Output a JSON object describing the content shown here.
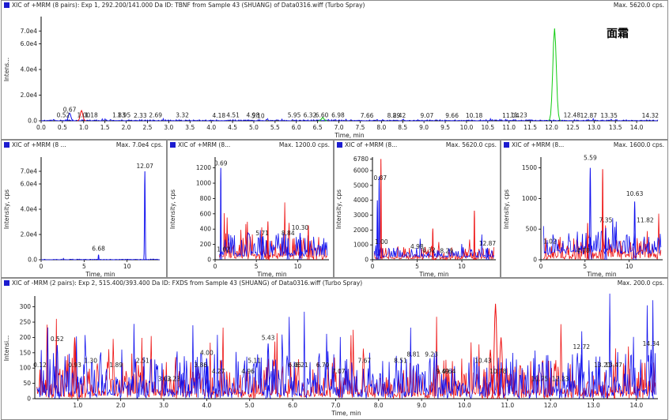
{
  "colors": {
    "blue": "#1111ee",
    "red": "#ee1111",
    "green": "#11cc11",
    "axis": "#000000"
  },
  "chart_data": [
    {
      "type": "line",
      "header_title": "XIC of +MRM (8 pairs): Exp 1, 292.200/141.000 Da ID: TBNF from Sample 43 (SHUANG) of Data0316.wiff (Turbo Spray)",
      "header_max": "Max. 5620.0 cps.",
      "annotation": "面霜",
      "xlabel": "Time, min",
      "ylabel": "Intens...",
      "xlim": [
        0,
        14.5
      ],
      "ylim": [
        0,
        80000
      ],
      "x_ticks": [
        0,
        0.5,
        1,
        1.5,
        2,
        2.5,
        3,
        3.5,
        4,
        4.5,
        5,
        5.5,
        6,
        6.5,
        7,
        7.5,
        8,
        8.5,
        9,
        9.5,
        10,
        10.5,
        11,
        11.5,
        12,
        12.5,
        13,
        13.5,
        14
      ],
      "x_tick_labels": [
        "0.0",
        "0.5",
        "1.0",
        "1.5",
        "2.0",
        "2.5",
        "3.0",
        "3.5",
        "4.0",
        "4.5",
        "5.0",
        "5.5",
        "6.0",
        "6.5",
        "7.0",
        "7.5",
        "8.0",
        "8.5",
        "9.0",
        "9.5",
        "10.0",
        "10.5",
        "11.0",
        "11.5",
        "12.0",
        "12.5",
        "13.0",
        "13.5",
        "14.0"
      ],
      "y_ticks": [
        0,
        20000,
        40000,
        60000,
        70000
      ],
      "y_tick_labels": [
        "0.0",
        "2.0e4",
        "4.0e4",
        "6.0e4",
        "7.0e4"
      ],
      "peak_labels": [
        {
          "x": 0.52,
          "y": 2200,
          "text": "0.52"
        },
        {
          "x": 0.67,
          "y": 6500,
          "text": "0.67"
        },
        {
          "x": 1.0,
          "y": 2200,
          "text": "1.00"
        },
        {
          "x": 1.18,
          "y": 2200,
          "text": "1.18"
        },
        {
          "x": 1.83,
          "y": 2200,
          "text": "1.83"
        },
        {
          "x": 1.95,
          "y": 2200,
          "text": "1.95"
        },
        {
          "x": 2.33,
          "y": 1800,
          "text": "2.33"
        },
        {
          "x": 2.69,
          "y": 2200,
          "text": "2.69"
        },
        {
          "x": 3.32,
          "y": 2200,
          "text": "3.32"
        },
        {
          "x": 4.18,
          "y": 1800,
          "text": "4.18"
        },
        {
          "x": 4.51,
          "y": 2200,
          "text": "4.51"
        },
        {
          "x": 4.98,
          "y": 2200,
          "text": "4.98"
        },
        {
          "x": 5.1,
          "y": 1600,
          "text": "5.10"
        },
        {
          "x": 5.95,
          "y": 2200,
          "text": "5.95"
        },
        {
          "x": 6.32,
          "y": 2200,
          "text": "6.32"
        },
        {
          "x": 6.6,
          "y": 2200,
          "text": "6.60"
        },
        {
          "x": 6.98,
          "y": 2200,
          "text": "6.98"
        },
        {
          "x": 7.66,
          "y": 1800,
          "text": "7.66"
        },
        {
          "x": 8.29,
          "y": 1800,
          "text": "8.29"
        },
        {
          "x": 8.42,
          "y": 1800,
          "text": "8.42"
        },
        {
          "x": 9.07,
          "y": 1800,
          "text": "9.07"
        },
        {
          "x": 9.66,
          "y": 1800,
          "text": "9.66"
        },
        {
          "x": 10.18,
          "y": 1800,
          "text": "10.18"
        },
        {
          "x": 11.04,
          "y": 1800,
          "text": "11.04"
        },
        {
          "x": 11.23,
          "y": 2200,
          "text": "11.23"
        },
        {
          "x": 12.48,
          "y": 2200,
          "text": "12.48"
        },
        {
          "x": 12.87,
          "y": 1800,
          "text": "12.87"
        },
        {
          "x": 13.35,
          "y": 1800,
          "text": "13.35"
        },
        {
          "x": 14.32,
          "y": 1800,
          "text": "14.32"
        }
      ],
      "peaks": [
        {
          "color": "green",
          "x": 12.07,
          "y": 72000,
          "w": 0.07
        },
        {
          "color": "red",
          "x": 0.95,
          "y": 8000,
          "w": 0.05
        },
        {
          "color": "blue",
          "x": 0.67,
          "y": 6000,
          "w": 0.05
        },
        {
          "color": "green",
          "x": 6.62,
          "y": 2500,
          "w": 0.05
        }
      ],
      "noise": [
        {
          "color": "blue",
          "amp": 500,
          "base": 0
        }
      ],
      "noise_xrange": [
        0,
        14.5
      ]
    },
    {
      "type": "line",
      "header_title": "XIC of +MRM (8 ...",
      "header_max": "Max. 7.0e4 cps.",
      "xlabel": "Time, min",
      "ylabel": "Intensity, cps",
      "xlim": [
        0,
        13.8
      ],
      "ylim": [
        0,
        80000
      ],
      "x_ticks": [
        0,
        5,
        10
      ],
      "x_tick_labels": [
        "0",
        "5",
        "10"
      ],
      "y_ticks": [
        0,
        20000,
        40000,
        60000,
        70000
      ],
      "y_tick_labels": [
        "0.0",
        "2.0e4",
        "4.0e4",
        "6.0e4",
        "7.0e4"
      ],
      "peak_labels": [
        {
          "x": 12.07,
          "y": 72000,
          "text": "12.07"
        },
        {
          "x": 6.68,
          "y": 6500,
          "text": "6.68"
        }
      ],
      "peaks": [
        {
          "color": "blue",
          "x": 12.07,
          "y": 70000,
          "w": 0.07
        },
        {
          "color": "blue",
          "x": 6.68,
          "y": 4000,
          "w": 0.05
        }
      ],
      "noise": [
        {
          "color": "blue",
          "amp": 300,
          "base": 0
        }
      ],
      "noise_xrange": [
        0,
        13.8
      ]
    },
    {
      "type": "line",
      "header_title": "XIC of +MRM (8...",
      "header_max": "Max. 1200.0 cps.",
      "xlabel": "Time, min",
      "ylabel": "Intensity, cps",
      "xlim": [
        0,
        13.8
      ],
      "ylim": [
        0,
        1320
      ],
      "x_ticks": [
        0,
        5,
        10
      ],
      "x_tick_labels": [
        "0",
        "5",
        "10"
      ],
      "y_ticks": [
        0,
        200,
        400,
        600,
        800,
        1000,
        1200
      ],
      "y_tick_labels": [
        "0",
        "200",
        "400",
        "600",
        "800",
        "1000",
        "1200"
      ],
      "peak_labels": [
        {
          "x": 0.69,
          "y": 1220,
          "text": "0.69"
        },
        {
          "x": 1.02,
          "y": 100,
          "text": "1.02"
        },
        {
          "x": 5.71,
          "y": 310,
          "text": "5.71"
        },
        {
          "x": 8.84,
          "y": 310,
          "text": "8.84"
        },
        {
          "x": 10.3,
          "y": 380,
          "text": "10.30"
        }
      ],
      "peaks": [
        {
          "color": "blue",
          "x": 0.69,
          "y": 1200,
          "w": 0.05
        },
        {
          "color": "blue",
          "x": 5.71,
          "y": 300,
          "w": 0.07
        },
        {
          "color": "red",
          "x": 6.4,
          "y": 500,
          "w": 0.05
        },
        {
          "color": "blue",
          "x": 8.84,
          "y": 280,
          "w": 0.07
        },
        {
          "color": "blue",
          "x": 10.3,
          "y": 350,
          "w": 0.07
        },
        {
          "color": "red",
          "x": 11.3,
          "y": 450,
          "w": 0.06
        }
      ],
      "noise": [
        {
          "color": "red",
          "amp": 200,
          "base": 0
        },
        {
          "color": "blue",
          "amp": 180,
          "base": 40
        }
      ],
      "noise_xrange": [
        0.5,
        13.6
      ]
    },
    {
      "type": "line",
      "header_title": "XIC of +MRM (8...",
      "header_max": "Max. 5620.0 cps.",
      "xlabel": "Time, min",
      "ylabel": "Intensity, cps",
      "xlim": [
        0,
        13.8
      ],
      "ylim": [
        0,
        6800
      ],
      "x_ticks": [
        0,
        5,
        10
      ],
      "x_tick_labels": [
        "0",
        "5",
        "10"
      ],
      "y_ticks": [
        0,
        1000,
        2000,
        3000,
        4000,
        5000,
        6000,
        6780
      ],
      "y_tick_labels": [
        "0",
        "1000",
        "2000",
        "3000",
        "4000",
        "5000",
        "6000",
        "6780"
      ],
      "peak_labels": [
        {
          "x": 0.87,
          "y": 5300,
          "text": "0.87"
        },
        {
          "x": 1.0,
          "y": 1000,
          "text": "1.00"
        },
        {
          "x": 4.98,
          "y": 700,
          "text": "4.98"
        },
        {
          "x": 6.32,
          "y": 450,
          "text": "6.32"
        },
        {
          "x": 8.29,
          "y": 400,
          "text": "8.29"
        },
        {
          "x": 12.87,
          "y": 900,
          "text": "12.87"
        }
      ],
      "peaks": [
        {
          "color": "red",
          "x": 0.95,
          "y": 6780,
          "w": 0.05
        },
        {
          "color": "blue",
          "x": 0.75,
          "y": 5600,
          "w": 0.05
        },
        {
          "color": "blue",
          "x": 0.55,
          "y": 4000,
          "w": 0.05
        },
        {
          "color": "red",
          "x": 6.75,
          "y": 2100,
          "w": 0.05
        },
        {
          "color": "red",
          "x": 11.4,
          "y": 3300,
          "w": 0.05
        },
        {
          "color": "blue",
          "x": 12.87,
          "y": 800,
          "w": 0.08
        }
      ],
      "noise": [
        {
          "color": "red",
          "amp": 500,
          "base": 0
        },
        {
          "color": "blue",
          "amp": 400,
          "base": 150
        }
      ],
      "noise_xrange": [
        0.2,
        13.6
      ]
    },
    {
      "type": "line",
      "header_title": "XIC of +MRM (8...",
      "header_max": "Max. 1600.0 cps.",
      "xlabel": "Time, min",
      "ylabel": "Intensity, cps",
      "xlim": [
        0,
        13.8
      ],
      "ylim": [
        0,
        1650
      ],
      "x_ticks": [
        0,
        5,
        10
      ],
      "x_tick_labels": [
        "0",
        "5",
        "10"
      ],
      "y_ticks": [
        0,
        500,
        1000,
        1500
      ],
      "y_tick_labels": [
        "0",
        "500",
        "1000",
        "1500"
      ],
      "peak_labels": [
        {
          "x": 5.59,
          "y": 1620,
          "text": "5.59"
        },
        {
          "x": 1.02,
          "y": 250,
          "text": "1.02"
        },
        {
          "x": 4.78,
          "y": 100,
          "text": "4.78"
        },
        {
          "x": 7.35,
          "y": 600,
          "text": "7.35"
        },
        {
          "x": 10.63,
          "y": 1030,
          "text": "10.63"
        },
        {
          "x": 11.82,
          "y": 600,
          "text": "11.82"
        }
      ],
      "peaks": [
        {
          "color": "blue",
          "x": 5.59,
          "y": 1500,
          "w": 0.08
        },
        {
          "color": "red",
          "x": 7.0,
          "y": 1480,
          "w": 0.05
        },
        {
          "color": "blue",
          "x": 10.63,
          "y": 950,
          "w": 0.08
        },
        {
          "color": "red",
          "x": 5.3,
          "y": 600,
          "w": 0.05
        },
        {
          "color": "blue",
          "x": 7.35,
          "y": 520,
          "w": 0.06
        }
      ],
      "noise": [
        {
          "color": "red",
          "amp": 250,
          "base": 0
        },
        {
          "color": "blue",
          "amp": 250,
          "base": 80
        }
      ],
      "noise_xrange": [
        0.3,
        13.6
      ]
    },
    {
      "type": "line",
      "header_title": "XIC of -MRM (2 pairs): Exp 2, 515.400/393.400 Da ID: FXDS from Sample 43 (SHUANG) of Data0316.wiff (Turbo Spray)",
      "header_max": "Max. 200.0 cps.",
      "xlabel": "Time, min",
      "ylabel": "Intensi...",
      "xlim": [
        0,
        14.5
      ],
      "ylim": [
        0,
        330
      ],
      "x_ticks": [
        1,
        2,
        3,
        4,
        5,
        6,
        7,
        8,
        9,
        10,
        11,
        12,
        13,
        14
      ],
      "x_tick_labels": [
        "1.0",
        "2.0",
        "3.0",
        "4.0",
        "5.0",
        "6.0",
        "7.0",
        "8.0",
        "9.0",
        "10.0",
        "11.0",
        "12.0",
        "13.0",
        "14.0"
      ],
      "y_ticks": [
        0,
        50,
        100,
        150,
        200,
        250,
        300
      ],
      "y_tick_labels": [
        "0",
        "50",
        "100",
        "150",
        "200",
        "250",
        "300"
      ],
      "peak_labels": [
        {
          "x": 0.12,
          "y": 100,
          "text": "0.12"
        },
        {
          "x": 0.52,
          "y": 185,
          "text": "0.52"
        },
        {
          "x": 0.93,
          "y": 100,
          "text": "0.93"
        },
        {
          "x": 1.3,
          "y": 115,
          "text": "1.30"
        },
        {
          "x": 1.89,
          "y": 100,
          "text": "1.89"
        },
        {
          "x": 2.51,
          "y": 115,
          "text": "2.51"
        },
        {
          "x": 3.02,
          "y": 55,
          "text": "3.02"
        },
        {
          "x": 3.23,
          "y": 55,
          "text": "3.23"
        },
        {
          "x": 3.86,
          "y": 100,
          "text": "3.86"
        },
        {
          "x": 4.0,
          "y": 140,
          "text": "4.00"
        },
        {
          "x": 4.27,
          "y": 80,
          "text": "4.27"
        },
        {
          "x": 4.96,
          "y": 80,
          "text": "4.96"
        },
        {
          "x": 5.11,
          "y": 115,
          "text": "5.11"
        },
        {
          "x": 5.43,
          "y": 190,
          "text": "5.43"
        },
        {
          "x": 6.05,
          "y": 100,
          "text": "6.05"
        },
        {
          "x": 6.21,
          "y": 100,
          "text": "6.21"
        },
        {
          "x": 6.7,
          "y": 100,
          "text": "6.70"
        },
        {
          "x": 7.07,
          "y": 80,
          "text": "7.07"
        },
        {
          "x": 7.67,
          "y": 115,
          "text": "7.67"
        },
        {
          "x": 8.51,
          "y": 115,
          "text": "8.51"
        },
        {
          "x": 8.81,
          "y": 135,
          "text": "8.81"
        },
        {
          "x": 9.23,
          "y": 135,
          "text": "9.23"
        },
        {
          "x": 9.49,
          "y": 80,
          "text": "9.49"
        },
        {
          "x": 9.64,
          "y": 80,
          "text": "9.64"
        },
        {
          "x": 10.43,
          "y": 115,
          "text": "10.43"
        },
        {
          "x": 10.78,
          "y": 80,
          "text": "10.78"
        },
        {
          "x": 11.75,
          "y": 55,
          "text": "11.75"
        },
        {
          "x": 12.23,
          "y": 55,
          "text": "12.23"
        },
        {
          "x": 12.72,
          "y": 160,
          "text": "12.72"
        },
        {
          "x": 13.21,
          "y": 100,
          "text": "13.21"
        },
        {
          "x": 13.47,
          "y": 100,
          "text": "13.47"
        },
        {
          "x": 14.34,
          "y": 170,
          "text": "14.34"
        }
      ],
      "peaks": [
        {
          "color": "red",
          "x": 10.72,
          "y": 310,
          "w": 0.05
        },
        {
          "color": "red",
          "x": 10.85,
          "y": 200,
          "w": 0.05
        },
        {
          "color": "red",
          "x": 10.6,
          "y": 160,
          "w": 0.04
        },
        {
          "color": "red",
          "x": 0.93,
          "y": 200,
          "w": 0.04
        },
        {
          "color": "blue",
          "x": 0.52,
          "y": 175,
          "w": 0.03
        },
        {
          "color": "blue",
          "x": 5.43,
          "y": 180,
          "w": 0.03
        },
        {
          "color": "blue",
          "x": 14.34,
          "y": 160,
          "w": 0.03
        },
        {
          "color": "blue",
          "x": 12.72,
          "y": 145,
          "w": 0.03
        },
        {
          "color": "blue",
          "x": 4.0,
          "y": 130,
          "w": 0.03
        }
      ],
      "noise": [
        {
          "color": "red",
          "amp": 75,
          "base": 0
        },
        {
          "color": "blue",
          "amp": 90,
          "base": 0
        }
      ],
      "noise_xrange": [
        0.05,
        14.45
      ]
    }
  ]
}
